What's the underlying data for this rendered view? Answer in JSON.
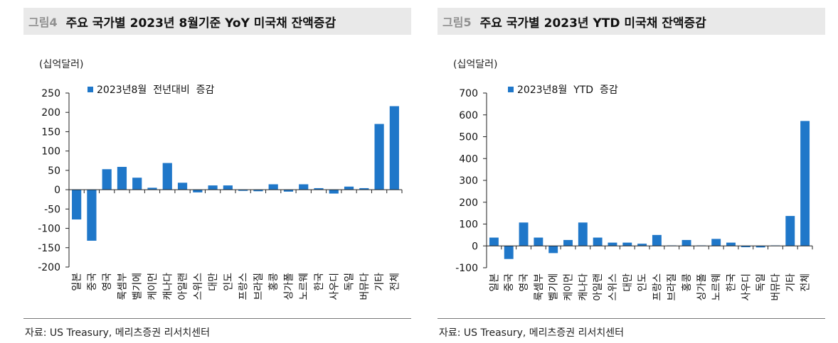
{
  "figures": [
    {
      "num": "그림4",
      "title": "주요 국가별 2023년 8월기준 YoY 미국채 잔액증감",
      "unit": "(십억달러)",
      "source": "자료: US Treasury, 메리츠증권 리서치센터"
    },
    {
      "num": "그림5",
      "title": "주요 국가별 2023년 YTD 미국채 잔액증감",
      "unit": "(십억달러)",
      "source": "자료: US Treasury, 메리츠증권 리서치센터"
    }
  ],
  "chart_data": [
    {
      "type": "bar",
      "bar_color": "#1f77c9",
      "categories": [
        "일본",
        "중국",
        "영국",
        "룩셈부",
        "벨기에",
        "케이먼",
        "캐나다",
        "아일랜",
        "스위스",
        "대만",
        "인도",
        "프랑스",
        "브라질",
        "홍콩",
        "싱가폴",
        "노르웨",
        "한국",
        "사우디",
        "독일",
        "버뮤다",
        "기타",
        "전체"
      ],
      "series": [
        {
          "name": "2023년8월  전년대비  증감",
          "values": [
            -77,
            -132,
            53,
            59,
            31,
            5,
            69,
            18,
            -7,
            11,
            11,
            -3,
            -4,
            14,
            -5,
            14,
            4,
            -10,
            8,
            4,
            170,
            216
          ]
        }
      ],
      "ylim": [
        -200,
        250
      ],
      "yticks": [
        -200,
        -150,
        -100,
        -50,
        0,
        50,
        100,
        150,
        200,
        250
      ],
      "legend_position": "top-left",
      "grid": false
    },
    {
      "type": "bar",
      "bar_color": "#1f77c9",
      "categories": [
        "일본",
        "중국",
        "영국",
        "룩셈부",
        "벨기에",
        "케이먼",
        "캐나다",
        "아일랜",
        "스위스",
        "대만",
        "인도",
        "프랑스",
        "브라질",
        "홍콩",
        "싱가폴",
        "노르웨",
        "한국",
        "사우디",
        "독일",
        "버뮤다",
        "기타",
        "전체"
      ],
      "series": [
        {
          "name": "2023년8월  YTD  증감",
          "values": [
            38,
            -60,
            107,
            38,
            -33,
            27,
            107,
            38,
            15,
            15,
            10,
            50,
            2,
            27,
            2,
            32,
            15,
            -6,
            -7,
            2,
            137,
            572
          ]
        }
      ],
      "ylim": [
        -100,
        700
      ],
      "yticks": [
        -100,
        0,
        100,
        200,
        300,
        400,
        500,
        600,
        700
      ],
      "legend_position": "top-left",
      "grid": false
    }
  ]
}
